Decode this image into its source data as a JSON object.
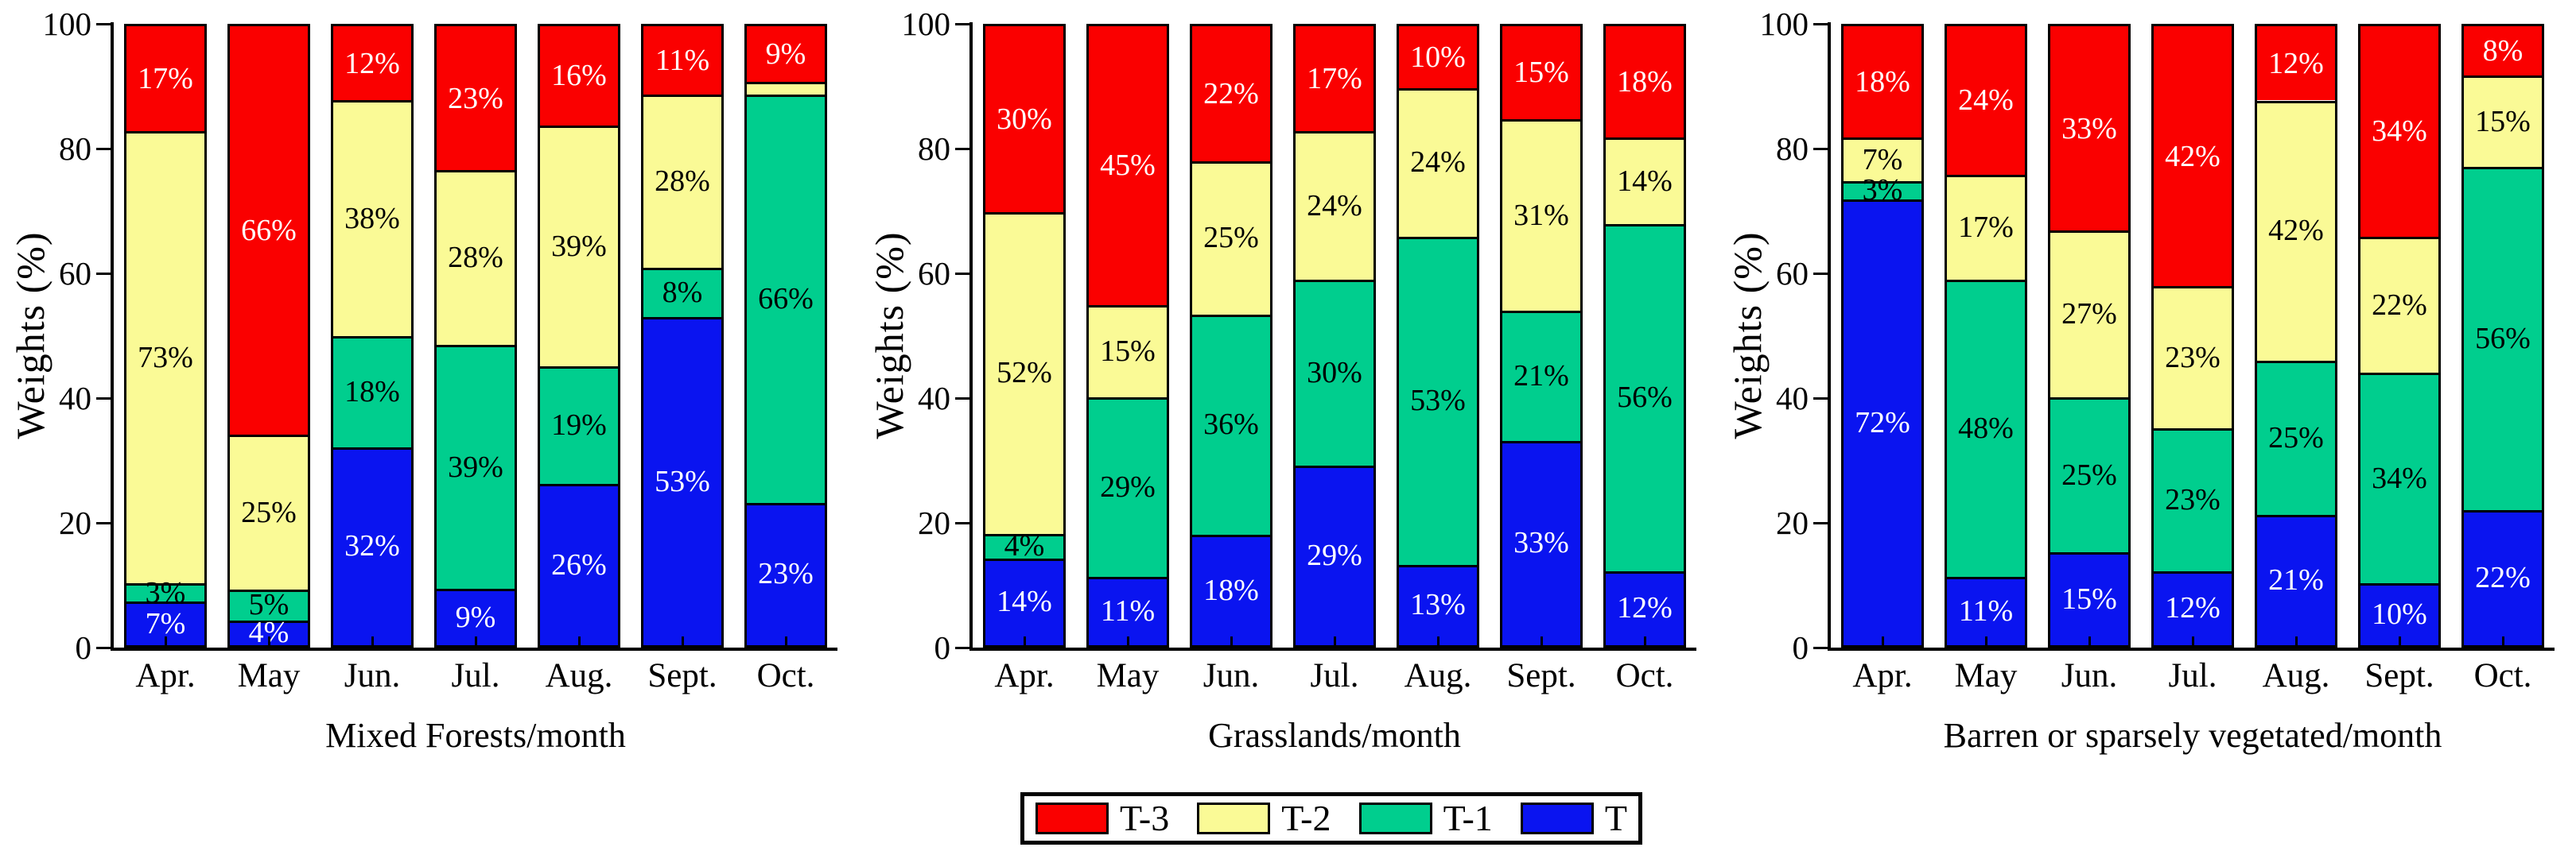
{
  "figure": {
    "ylabel": "Weights (%)",
    "background": "#FFFFFF",
    "legend": [
      {
        "label": "T-3",
        "color": "#FA0000"
      },
      {
        "label": "T-2",
        "color": "#FAFA96"
      },
      {
        "label": "T-1",
        "color": "#00CE8E"
      },
      {
        "label": "T",
        "color": "#0A14F0"
      }
    ],
    "legend_position": "bottom-center"
  },
  "chart_data": [
    {
      "type": "bar",
      "stacked": true,
      "title": "Mixed Forests/month",
      "xlabel": "Mixed Forests/month",
      "ylabel": "Weights (%)",
      "ylim": [
        0,
        100
      ],
      "yticks": [
        "0",
        "20",
        "40",
        "60",
        "80",
        "100"
      ],
      "grid": false,
      "categories": [
        "Apr.",
        "May",
        "Jun.",
        "Jul.",
        "Aug.",
        "Sept.",
        "Oct."
      ],
      "series": [
        {
          "name": "T",
          "color": "#0A14F0",
          "label_color": "#FFFFFF",
          "values": [
            7,
            4,
            32,
            9,
            26,
            53,
            23
          ],
          "labels": [
            "7%",
            "4%",
            "32%",
            "9%",
            "26%",
            "53%",
            "23%"
          ]
        },
        {
          "name": "T-1",
          "color": "#00CE8E",
          "label_color": "#000000",
          "values": [
            3,
            5,
            18,
            39,
            19,
            8,
            66
          ],
          "labels": [
            "3%",
            "5%",
            "18%",
            "39%",
            "19%",
            "8%",
            "66%"
          ]
        },
        {
          "name": "T-2",
          "color": "#FAFA96",
          "label_color": "#000000",
          "values": [
            73,
            25,
            38,
            28,
            39,
            28,
            2
          ],
          "labels": [
            "73%",
            "25%",
            "38%",
            "28%",
            "39%",
            "28%",
            ""
          ]
        },
        {
          "name": "T-3",
          "color": "#FA0000",
          "label_color": "#FFFFFF",
          "values": [
            17,
            66,
            12,
            23,
            16,
            11,
            9
          ],
          "labels": [
            "17%",
            "66%",
            "12%",
            "23%",
            "16%",
            "11%",
            "9%"
          ]
        }
      ]
    },
    {
      "type": "bar",
      "stacked": true,
      "title": "Grasslands/month",
      "xlabel": "Grasslands/month",
      "ylabel": "Weights (%)",
      "ylim": [
        0,
        100
      ],
      "yticks": [
        "0",
        "20",
        "40",
        "60",
        "80",
        "100"
      ],
      "grid": false,
      "categories": [
        "Apr.",
        "May",
        "Jun.",
        "Jul.",
        "Aug.",
        "Sept.",
        "Oct."
      ],
      "series": [
        {
          "name": "T",
          "color": "#0A14F0",
          "label_color": "#FFFFFF",
          "values": [
            14,
            11,
            18,
            29,
            13,
            33,
            12
          ],
          "labels": [
            "14%",
            "11%",
            "18%",
            "29%",
            "13%",
            "33%",
            "12%"
          ]
        },
        {
          "name": "T-1",
          "color": "#00CE8E",
          "label_color": "#000000",
          "values": [
            4,
            29,
            36,
            30,
            53,
            21,
            56
          ],
          "labels": [
            "4%",
            "29%",
            "36%",
            "30%",
            "53%",
            "21%",
            "56%"
          ]
        },
        {
          "name": "T-2",
          "color": "#FAFA96",
          "label_color": "#000000",
          "values": [
            52,
            15,
            25,
            24,
            24,
            31,
            14
          ],
          "labels": [
            "52%",
            "15%",
            "25%",
            "24%",
            "24%",
            "31%",
            "14%"
          ]
        },
        {
          "name": "T-3",
          "color": "#FA0000",
          "label_color": "#FFFFFF",
          "values": [
            30,
            45,
            22,
            17,
            10,
            15,
            18
          ],
          "labels": [
            "30%",
            "45%",
            "22%",
            "17%",
            "10%",
            "15%",
            "18%"
          ]
        }
      ]
    },
    {
      "type": "bar",
      "stacked": true,
      "title": "Barren or sparsely vegetated/month",
      "xlabel": "Barren or sparsely vegetated/month",
      "ylabel": "Weights (%)",
      "ylim": [
        0,
        100
      ],
      "yticks": [
        "0",
        "20",
        "40",
        "60",
        "80",
        "100"
      ],
      "grid": false,
      "categories": [
        "Apr.",
        "May",
        "Jun.",
        "Jul.",
        "Aug.",
        "Sept.",
        "Oct."
      ],
      "series": [
        {
          "name": "T",
          "color": "#0A14F0",
          "label_color": "#FFFFFF",
          "values": [
            72,
            11,
            15,
            12,
            21,
            10,
            22
          ],
          "labels": [
            "72%",
            "11%",
            "15%",
            "12%",
            "21%",
            "10%",
            "22%"
          ]
        },
        {
          "name": "T-1",
          "color": "#00CE8E",
          "label_color": "#000000",
          "values": [
            3,
            48,
            25,
            23,
            25,
            34,
            56
          ],
          "labels": [
            "3%",
            "48%",
            "25%",
            "23%",
            "25%",
            "34%",
            "56%"
          ]
        },
        {
          "name": "T-2",
          "color": "#FAFA96",
          "label_color": "#000000",
          "values": [
            7,
            17,
            27,
            23,
            42,
            22,
            15
          ],
          "labels": [
            "7%",
            "17%",
            "27%",
            "23%",
            "42%",
            "22%",
            "15%"
          ]
        },
        {
          "name": "T-3",
          "color": "#FA0000",
          "label_color": "#FFFFFF",
          "values": [
            18,
            24,
            33,
            42,
            12,
            34,
            8
          ],
          "labels": [
            "18%",
            "24%",
            "33%",
            "42%",
            "12%",
            "34%",
            "8%"
          ]
        }
      ]
    }
  ]
}
